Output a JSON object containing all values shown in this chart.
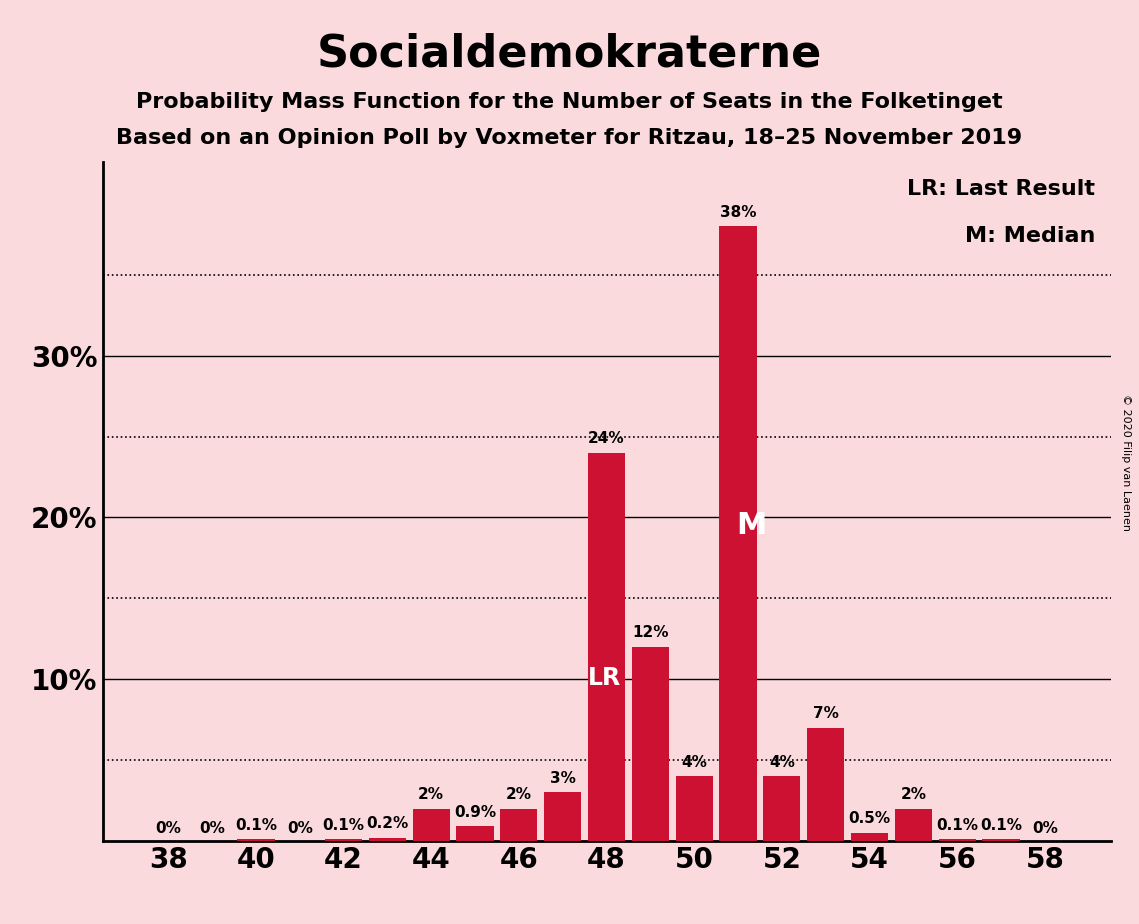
{
  "title": "Socialdemokraterne",
  "subtitle1": "Probability Mass Function for the Number of Seats in the Folketinget",
  "subtitle2": "Based on an Opinion Poll by Voxmeter for Ritzau, 18–25 November 2019",
  "copyright": "© 2020 Filip van Laenen",
  "background_color": "#fadadd",
  "bar_color": "#cc1133",
  "seats": [
    38,
    39,
    40,
    41,
    42,
    43,
    44,
    45,
    46,
    47,
    48,
    49,
    50,
    51,
    52,
    53,
    54,
    55,
    56,
    57,
    58
  ],
  "values": [
    0.0,
    0.0,
    0.1,
    0.0,
    0.1,
    0.2,
    2.0,
    0.9,
    2.0,
    3.0,
    24.0,
    12.0,
    4.0,
    38.0,
    4.0,
    7.0,
    0.5,
    2.0,
    0.1,
    0.1,
    0.0
  ],
  "labels": [
    "0%",
    "0%",
    "0.1%",
    "0%",
    "0.1%",
    "0.2%",
    "2%",
    "0.9%",
    "2%",
    "3%",
    "24%",
    "12%",
    "4%",
    "38%",
    "4%",
    "7%",
    "0.5%",
    "2%",
    "0.1%",
    "0.1%",
    "0%"
  ],
  "last_result_seat": 48,
  "median_seat": 51,
  "lr_label": "LR",
  "median_label": "M",
  "legend_lr": "LR: Last Result",
  "legend_m": "M: Median",
  "ylim": [
    0,
    42
  ],
  "xtick_seats": [
    38,
    40,
    42,
    44,
    46,
    48,
    50,
    52,
    54,
    56,
    58
  ],
  "solid_gridlines": [
    10,
    20,
    30
  ],
  "dotted_gridlines": [
    5,
    15,
    25,
    35
  ],
  "ytick_positions": [
    10,
    20,
    30
  ],
  "ytick_labels": [
    "10%",
    "20%",
    "30%"
  ],
  "title_fontsize": 32,
  "subtitle_fontsize": 16,
  "label_fontsize": 11,
  "axis_fontsize": 20
}
